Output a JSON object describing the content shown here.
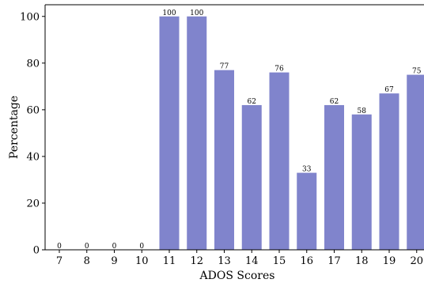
{
  "chart_data": {
    "type": "bar",
    "title": "",
    "xlabel": "ADOS Scores",
    "ylabel": "Percentage",
    "categories": [
      "7",
      "8",
      "9",
      "10",
      "11",
      "12",
      "13",
      "14",
      "15",
      "16",
      "17",
      "18",
      "19",
      "20"
    ],
    "values": [
      0,
      0,
      0,
      0,
      100,
      100,
      77,
      62,
      76,
      33,
      62,
      58,
      67,
      75
    ],
    "data_labels": [
      "0",
      "0",
      "0",
      "0",
      "100",
      "100",
      "77",
      "62",
      "76",
      "33",
      "62",
      "58",
      "67",
      "75"
    ],
    "ylim": [
      0,
      105
    ],
    "yticks": [
      0,
      20,
      40,
      60,
      80,
      100
    ],
    "grid": false,
    "legend": "none",
    "bar_color": "#8084cc"
  }
}
